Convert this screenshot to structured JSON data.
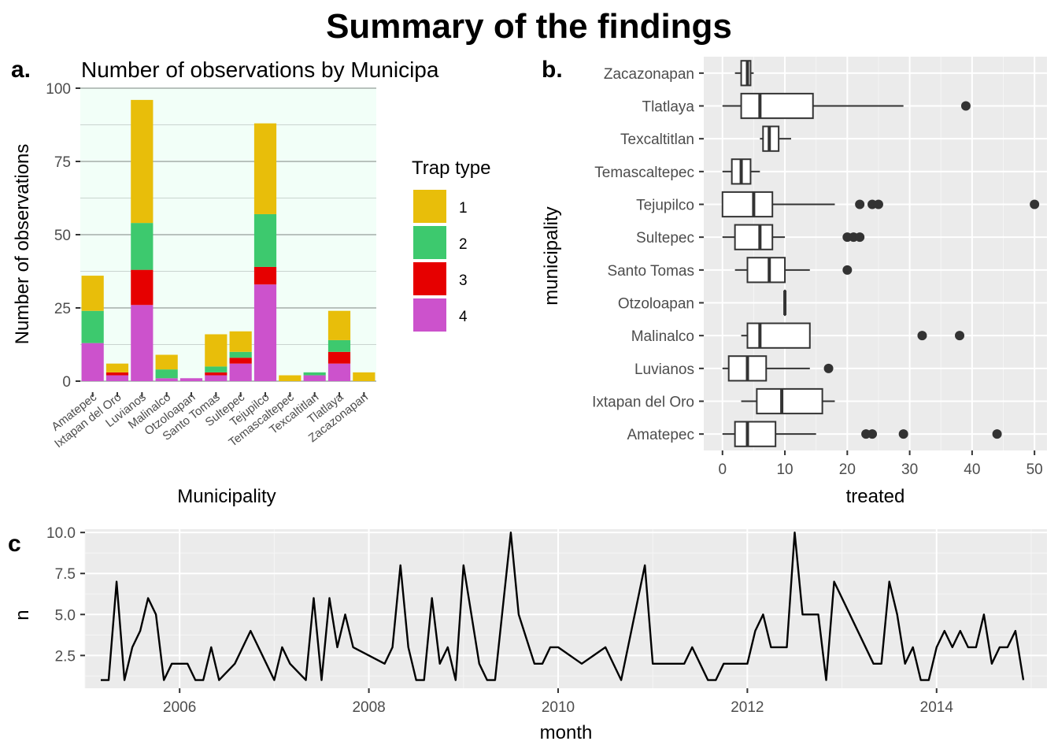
{
  "title": "Summary of the findings",
  "panels": {
    "a": {
      "label": "a.",
      "title": "Number of observations by Municipa"
    },
    "b": {
      "label": "b."
    },
    "c": {
      "label": "c"
    }
  },
  "chart_data": [
    {
      "type": "bar",
      "stacked": true,
      "title": "Number of observations by Municipa",
      "xlabel": "Municipality",
      "ylabel": "Number of observations",
      "ylim": [
        0,
        100
      ],
      "yticks": [
        0,
        25,
        50,
        75,
        100
      ],
      "categories": [
        "Amatepec",
        "Ixtapan del Oro",
        "Luvianos",
        "Malinalco",
        "Otzoloapan",
        "Santo Tomas",
        "Sultepec",
        "Tejupilco",
        "Temascaltepec",
        "Texcaltitlan",
        "Tlatlaya",
        "Zacazonapan"
      ],
      "legend_title": "Trap type",
      "legend_position": "right",
      "series": [
        {
          "name": "4",
          "color": "#cc52cc",
          "values": [
            13,
            2,
            26,
            1,
            1,
            2,
            6,
            33,
            0,
            2,
            6,
            0
          ]
        },
        {
          "name": "3",
          "color": "#e60000",
          "values": [
            0,
            1,
            12,
            0,
            0,
            1,
            2,
            6,
            0,
            0,
            4,
            0
          ]
        },
        {
          "name": "2",
          "color": "#3dc96e",
          "values": [
            11,
            0,
            16,
            3,
            0,
            2,
            2,
            18,
            0,
            1,
            4,
            0
          ]
        },
        {
          "name": "1",
          "color": "#e8be0a",
          "values": [
            12,
            3,
            42,
            5,
            0,
            11,
            7,
            31,
            2,
            0,
            10,
            3
          ]
        }
      ],
      "background": "#f2fff8",
      "grid": true
    },
    {
      "type": "boxplot",
      "xlabel": "treated",
      "ylabel": "municipality",
      "xlim": [
        -3,
        52
      ],
      "xticks": [
        0,
        10,
        20,
        30,
        40,
        50
      ],
      "grid": true,
      "background": "#ebebeb",
      "boxes": [
        {
          "category": "Zacazonapan",
          "min": 2,
          "q1": 3,
          "median": 4,
          "q3": 4.5,
          "max": 5,
          "outliers": []
        },
        {
          "category": "Tlatlaya",
          "min": 0,
          "q1": 3,
          "median": 6,
          "q3": 14.5,
          "max": 29,
          "outliers": [
            39
          ]
        },
        {
          "category": "Texcaltitlan",
          "min": 6,
          "q1": 6.5,
          "median": 7.5,
          "q3": 9,
          "max": 11,
          "outliers": []
        },
        {
          "category": "Temascaltepec",
          "min": 0,
          "q1": 1.5,
          "median": 3,
          "q3": 4.5,
          "max": 6,
          "outliers": []
        },
        {
          "category": "Tejupilco",
          "min": 0,
          "q1": 0,
          "median": 5,
          "q3": 8,
          "max": 18,
          "outliers": [
            22,
            24,
            25,
            50
          ]
        },
        {
          "category": "Sultepec",
          "min": 0,
          "q1": 2,
          "median": 6,
          "q3": 8,
          "max": 10,
          "outliers": [
            20,
            21,
            22
          ]
        },
        {
          "category": "Santo Tomas",
          "min": 2,
          "q1": 4,
          "median": 7.5,
          "q3": 10,
          "max": 14,
          "outliers": [
            20
          ]
        },
        {
          "category": "Otzoloapan",
          "min": 10,
          "q1": 10,
          "median": 10,
          "q3": 10,
          "max": 10,
          "outliers": []
        },
        {
          "category": "Malinalco",
          "min": 3,
          "q1": 4,
          "median": 6,
          "q3": 14,
          "max": 14,
          "outliers": [
            32,
            38
          ]
        },
        {
          "category": "Luvianos",
          "min": 0,
          "q1": 1,
          "median": 4,
          "q3": 7,
          "max": 14,
          "outliers": [
            17
          ]
        },
        {
          "category": "Ixtapan del Oro",
          "min": 3,
          "q1": 5.5,
          "median": 9.5,
          "q3": 16,
          "max": 18,
          "outliers": []
        },
        {
          "category": "Amatepec",
          "min": 0,
          "q1": 2,
          "median": 4,
          "q3": 8.5,
          "max": 15,
          "outliers": [
            23,
            24,
            29,
            44
          ]
        }
      ]
    },
    {
      "type": "line",
      "xlabel": "month",
      "ylabel": "n",
      "xlim": [
        "2005-01",
        "2015-03"
      ],
      "ylim": [
        0.5,
        10.2
      ],
      "xticks": [
        "2006",
        "2008",
        "2010",
        "2012",
        "2014"
      ],
      "yticks": [
        2.5,
        5.0,
        7.5,
        10.0
      ],
      "ytick_labels": [
        "2.5",
        "5.0",
        "7.5",
        "10.0"
      ],
      "grid": true,
      "background": "#ebebeb",
      "color": "#000000",
      "points": [
        [
          "2005-03",
          1
        ],
        [
          "2005-04",
          1
        ],
        [
          "2005-05",
          7
        ],
        [
          "2005-06",
          1
        ],
        [
          "2005-07",
          3
        ],
        [
          "2005-08",
          4
        ],
        [
          "2005-09",
          6
        ],
        [
          "2005-10",
          5
        ],
        [
          "2005-11",
          1
        ],
        [
          "2005-12",
          2
        ],
        [
          "2006-02",
          2
        ],
        [
          "2006-03",
          1
        ],
        [
          "2006-04",
          1
        ],
        [
          "2006-05",
          3
        ],
        [
          "2006-06",
          1
        ],
        [
          "2006-08",
          2
        ],
        [
          "2006-10",
          4
        ],
        [
          "2006-12",
          2
        ],
        [
          "2007-01",
          1
        ],
        [
          "2007-02",
          3
        ],
        [
          "2007-03",
          2
        ],
        [
          "2007-05",
          1
        ],
        [
          "2007-06",
          6
        ],
        [
          "2007-07",
          1
        ],
        [
          "2007-08",
          6
        ],
        [
          "2007-09",
          3
        ],
        [
          "2007-10",
          5
        ],
        [
          "2007-11",
          3
        ],
        [
          "2008-03",
          2
        ],
        [
          "2008-04",
          3
        ],
        [
          "2008-05",
          8
        ],
        [
          "2008-06",
          3
        ],
        [
          "2008-07",
          1
        ],
        [
          "2008-08",
          1
        ],
        [
          "2008-09",
          6
        ],
        [
          "2008-10",
          2
        ],
        [
          "2008-11",
          3
        ],
        [
          "2008-12",
          1
        ],
        [
          "2009-01",
          8
        ],
        [
          "2009-03",
          2
        ],
        [
          "2009-04",
          1
        ],
        [
          "2009-05",
          1
        ],
        [
          "2009-07",
          10
        ],
        [
          "2009-08",
          5
        ],
        [
          "2009-10",
          2
        ],
        [
          "2009-11",
          2
        ],
        [
          "2009-12",
          3
        ],
        [
          "2010-01",
          3
        ],
        [
          "2010-04",
          2
        ],
        [
          "2010-07",
          3
        ],
        [
          "2010-09",
          1
        ],
        [
          "2010-12",
          8
        ],
        [
          "2011-01",
          2
        ],
        [
          "2011-05",
          2
        ],
        [
          "2011-06",
          3
        ],
        [
          "2011-07",
          2
        ],
        [
          "2011-08",
          1
        ],
        [
          "2011-09",
          1
        ],
        [
          "2011-10",
          2
        ],
        [
          "2012-01",
          2
        ],
        [
          "2012-02",
          4
        ],
        [
          "2012-03",
          5
        ],
        [
          "2012-04",
          3
        ],
        [
          "2012-06",
          3
        ],
        [
          "2012-07",
          10
        ],
        [
          "2012-08",
          5
        ],
        [
          "2012-10",
          5
        ],
        [
          "2012-11",
          1
        ],
        [
          "2012-12",
          7
        ],
        [
          "2013-05",
          2
        ],
        [
          "2013-06",
          2
        ],
        [
          "2013-07",
          7
        ],
        [
          "2013-08",
          5
        ],
        [
          "2013-09",
          2
        ],
        [
          "2013-10",
          3
        ],
        [
          "2013-11",
          1
        ],
        [
          "2013-12",
          1
        ],
        [
          "2014-01",
          3
        ],
        [
          "2014-02",
          4
        ],
        [
          "2014-03",
          3
        ],
        [
          "2014-04",
          4
        ],
        [
          "2014-05",
          3
        ],
        [
          "2014-06",
          3
        ],
        [
          "2014-07",
          5
        ],
        [
          "2014-08",
          2
        ],
        [
          "2014-09",
          3
        ],
        [
          "2014-10",
          3
        ],
        [
          "2014-11",
          4
        ],
        [
          "2014-12",
          1
        ]
      ]
    }
  ]
}
